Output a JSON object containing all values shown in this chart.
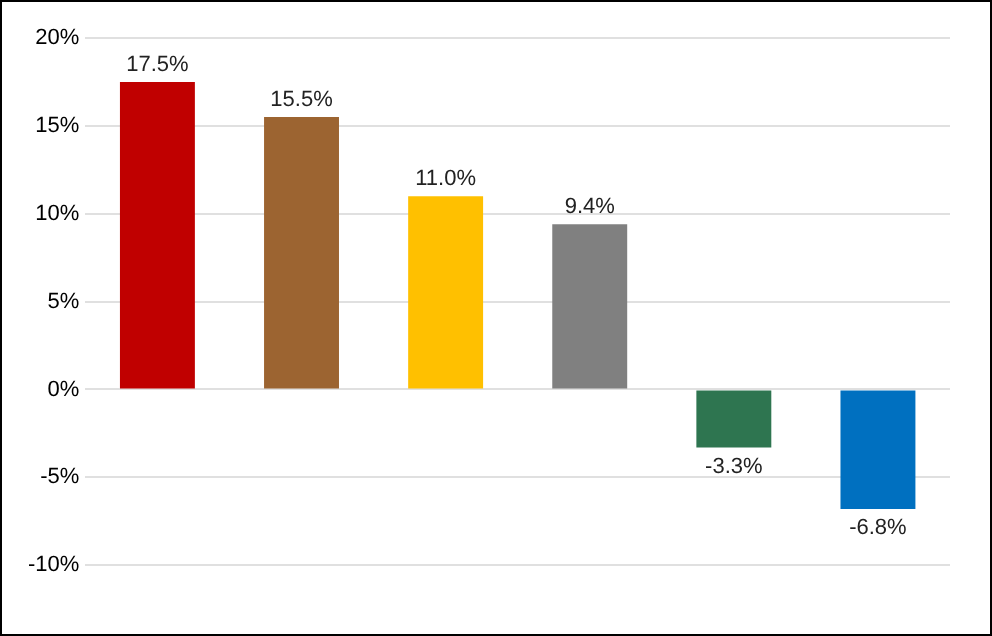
{
  "chart_data": {
    "type": "bar",
    "categories": [
      null,
      null,
      null,
      null,
      null,
      null
    ],
    "values": [
      17.5,
      15.5,
      11.0,
      9.4,
      -3.3,
      -6.8
    ],
    "colors": [
      "#c00000",
      "#9c6431",
      "#ffc000",
      "#808080",
      "#2e7550",
      "#0070c0"
    ],
    "value_labels": [
      "17.5%",
      "15.5%",
      "11.0%",
      "9.4%",
      "-3.3%",
      "-6.8%"
    ],
    "ylim": [
      -10,
      20
    ],
    "yticks": [
      {
        "value": -10,
        "label": "-10%"
      },
      {
        "value": -5,
        "label": "-5%"
      },
      {
        "value": 0,
        "label": "0%"
      },
      {
        "value": 5,
        "label": "5%"
      },
      {
        "value": 10,
        "label": "10%"
      },
      {
        "value": 15,
        "label": "15%"
      },
      {
        "value": 20,
        "label": "20%"
      }
    ],
    "grid": "y",
    "legend": false
  }
}
